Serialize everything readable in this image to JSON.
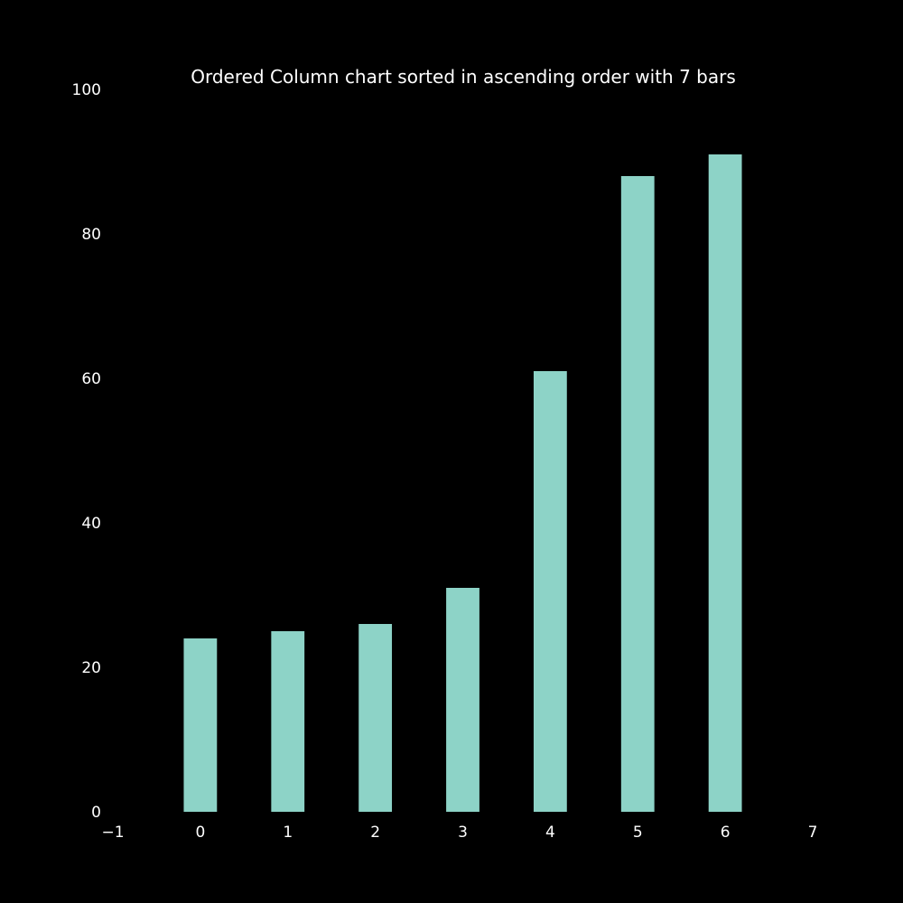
{
  "chart_data": {
    "type": "bar",
    "title": "Ordered Column chart sorted in ascending order with 7 bars",
    "xlabel": "",
    "ylabel": "",
    "categories": [
      0,
      1,
      2,
      3,
      4,
      5,
      6
    ],
    "values": [
      24,
      25,
      26,
      31,
      61,
      88,
      91
    ],
    "xlim": [
      -1,
      7
    ],
    "ylim": [
      0,
      100
    ],
    "x_ticks": [
      "−1",
      "0",
      "1",
      "2",
      "3",
      "4",
      "5",
      "6",
      "7"
    ],
    "x_tick_values": [
      -1,
      0,
      1,
      2,
      3,
      4,
      5,
      6,
      7
    ],
    "y_ticks": [
      "0",
      "20",
      "40",
      "60",
      "80",
      "100"
    ],
    "y_tick_values": [
      0,
      20,
      40,
      60,
      80,
      100
    ],
    "bar_color": "#8dd3c7",
    "background_color": "#000000",
    "text_color": "#ffffff",
    "grid": false,
    "legend": "none"
  }
}
